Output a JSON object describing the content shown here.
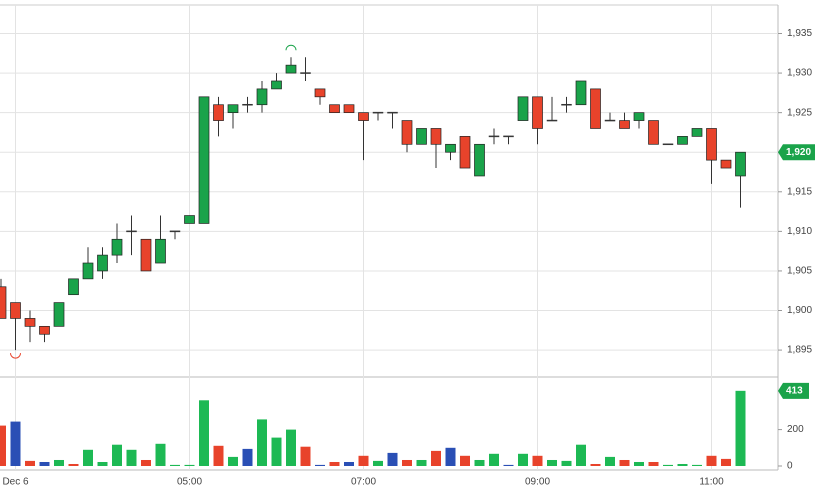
{
  "chart_data": {
    "type": "candlestick",
    "categories": [
      null,
      "Dec 6",
      null,
      null,
      null,
      null,
      null,
      null,
      null,
      null,
      null,
      null,
      null,
      "05:00",
      null,
      null,
      null,
      null,
      null,
      null,
      null,
      null,
      null,
      null,
      null,
      "07:00",
      null,
      null,
      null,
      null,
      null,
      null,
      null,
      null,
      null,
      null,
      null,
      "09:00",
      null,
      null,
      null,
      null,
      null,
      null,
      null,
      null,
      null,
      null,
      null,
      "11:00",
      null,
      null
    ],
    "open": [
      1903,
      1901,
      1899,
      1898,
      1898,
      1902,
      1904,
      1905,
      1907,
      1910,
      1909,
      1906,
      1910,
      1911,
      1911,
      1926,
      1925,
      1926,
      1926,
      1928,
      1930,
      1930,
      1928,
      1926,
      1926,
      1925,
      1925,
      1925,
      1924,
      1921,
      1923,
      1920,
      1922,
      1917,
      1922,
      1922,
      1924,
      1927,
      1924,
      1926,
      1926,
      1928,
      1924,
      1924,
      1924,
      1924,
      1921,
      1921,
      1922,
      1923,
      1919,
      1917
    ],
    "high": [
      1904,
      1901,
      1900,
      1898,
      1901,
      1904,
      1908,
      1908,
      1911,
      1912,
      1909,
      1912,
      1910,
      1912,
      1927,
      1927,
      1926,
      1927,
      1929,
      1930,
      1932,
      1932,
      1928,
      1926,
      1926,
      1925,
      1925,
      1925,
      1924,
      1923,
      1923,
      1921,
      1922,
      1921,
      1923,
      1922,
      1927,
      1927,
      1927,
      1927,
      1929,
      1928,
      1925,
      1925,
      1925,
      1924,
      1921,
      1922,
      1923,
      1923,
      1919,
      1920
    ],
    "low": [
      1899,
      1895,
      1896,
      1896,
      1898,
      1902,
      1904,
      1904,
      1906,
      1907,
      1905,
      1906,
      1909,
      1911,
      1911,
      1922,
      1923,
      1925,
      1925,
      1928,
      1930,
      1929,
      1926,
      1925,
      1925,
      1919,
      1924,
      1923,
      1920,
      1921,
      1918,
      1919,
      1918,
      1917,
      1921,
      1921,
      1924,
      1921,
      1924,
      1925,
      1926,
      1923,
      1924,
      1923,
      1923,
      1921,
      1921,
      1921,
      1922,
      1916,
      1918,
      1913
    ],
    "close": [
      1899,
      1899,
      1898,
      1897,
      1901,
      1904,
      1906,
      1907,
      1909,
      1910,
      1905,
      1909,
      1910,
      1912,
      1927,
      1924,
      1926,
      1926,
      1928,
      1929,
      1931,
      1930,
      1927,
      1925,
      1925,
      1924,
      1925,
      1925,
      1921,
      1923,
      1921,
      1921,
      1918,
      1921,
      1922,
      1922,
      1927,
      1923,
      1924,
      1926,
      1929,
      1923,
      1924,
      1923,
      1925,
      1921,
      1921,
      1922,
      1923,
      1919,
      1918,
      1920
    ],
    "volume": [
      222,
      244,
      28,
      22,
      33,
      11,
      89,
      22,
      117,
      89,
      33,
      122,
      6,
      6,
      361,
      111,
      50,
      94,
      256,
      156,
      200,
      106,
      6,
      22,
      22,
      56,
      28,
      72,
      33,
      33,
      83,
      100,
      56,
      33,
      67,
      6,
      67,
      56,
      33,
      28,
      117,
      11,
      50,
      33,
      22,
      22,
      6,
      11,
      6,
      56,
      39,
      413
    ],
    "volume_colors": [
      "#e8432b",
      "#2a4fb5",
      "#e8432b",
      "#2a4fb5",
      "#1db954",
      "#e8432b",
      "#1db954",
      "#1db954",
      "#1db954",
      "#1db954",
      "#e8432b",
      "#1db954",
      "#1db954",
      "#1db954",
      "#1db954",
      "#e8432b",
      "#1db954",
      "#2a4fb5",
      "#1db954",
      "#1db954",
      "#1db954",
      "#e8432b",
      "#2a4fb5",
      "#e8432b",
      "#2a4fb5",
      "#e8432b",
      "#1db954",
      "#2a4fb5",
      "#e8432b",
      "#1db954",
      "#e8432b",
      "#2a4fb5",
      "#e8432b",
      "#1db954",
      "#1db954",
      "#2a4fb5",
      "#1db954",
      "#e8432b",
      "#1db954",
      "#1db954",
      "#1db954",
      "#e8432b",
      "#1db954",
      "#e8432b",
      "#1db954",
      "#e8432b",
      "#1db954",
      "#1db954",
      "#1db954",
      "#e8432b",
      "#e8432b",
      "#1db954"
    ],
    "up_color": "#1aa34a",
    "down_color": "#e8432b",
    "flat_color": "#333333",
    "ylim": [
      1891.6,
      1938.6
    ],
    "yticks": [
      {
        "value": 1895,
        "label": "1,895"
      },
      {
        "value": 1900,
        "label": "1,900"
      },
      {
        "value": 1905,
        "label": "1,905"
      },
      {
        "value": 1910,
        "label": "1,910"
      },
      {
        "value": 1915,
        "label": "1,915"
      },
      {
        "value": 1920,
        "label": "1,920"
      },
      {
        "value": 1925,
        "label": "1,925"
      },
      {
        "value": 1930,
        "label": "1,930"
      },
      {
        "value": 1935,
        "label": "1,935"
      }
    ],
    "volume_lim": [
      -22,
      489
    ],
    "volume_ticks": [
      0,
      200
    ],
    "price_marker": {
      "value": 1920,
      "label": "1,920"
    },
    "grid": true
  }
}
